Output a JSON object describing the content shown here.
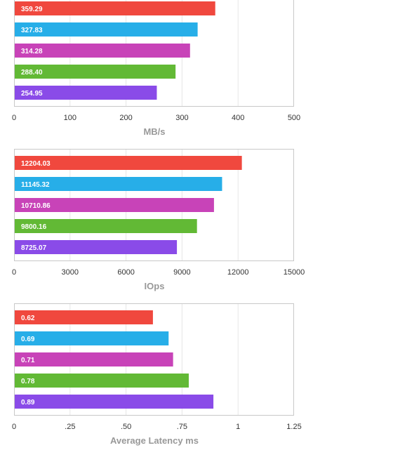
{
  "colors": [
    "#f0483e",
    "#27aee8",
    "#c843b8",
    "#62b935",
    "#8a4be8"
  ],
  "chart_data": [
    {
      "type": "bar",
      "orientation": "horizontal",
      "xlabel": "MB/s",
      "xlim": [
        0,
        500
      ],
      "ticks": [
        "0",
        "100",
        "200",
        "300",
        "400",
        "500"
      ],
      "tick_values": [
        0,
        100,
        200,
        300,
        400,
        500
      ],
      "values": [
        359.29,
        327.83,
        314.28,
        288.4,
        254.95
      ],
      "labels": [
        "359.29",
        "327.83",
        "314.28",
        "288.40",
        "254.95"
      ],
      "grid": true
    },
    {
      "type": "bar",
      "orientation": "horizontal",
      "xlabel": "IOps",
      "xlim": [
        0,
        15000
      ],
      "ticks": [
        "0",
        "3000",
        "6000",
        "9000",
        "12000",
        "15000"
      ],
      "tick_values": [
        0,
        3000,
        6000,
        9000,
        12000,
        15000
      ],
      "values": [
        12204.03,
        11145.32,
        10710.86,
        9800.16,
        8725.07
      ],
      "labels": [
        "12204.03",
        "11145.32",
        "10710.86",
        "9800.16",
        "8725.07"
      ],
      "grid": true
    },
    {
      "type": "bar",
      "orientation": "horizontal",
      "xlabel": "Average Latency ms",
      "xlim": [
        0,
        1.25
      ],
      "ticks": [
        "0",
        ".25",
        ".50",
        ".75",
        "1",
        "1.25"
      ],
      "tick_values": [
        0,
        0.25,
        0.5,
        0.75,
        1,
        1.25
      ],
      "values": [
        0.62,
        0.69,
        0.71,
        0.78,
        0.89
      ],
      "labels": [
        "0.62",
        "0.69",
        "0.71",
        "0.78",
        "0.89"
      ],
      "grid": true
    }
  ]
}
